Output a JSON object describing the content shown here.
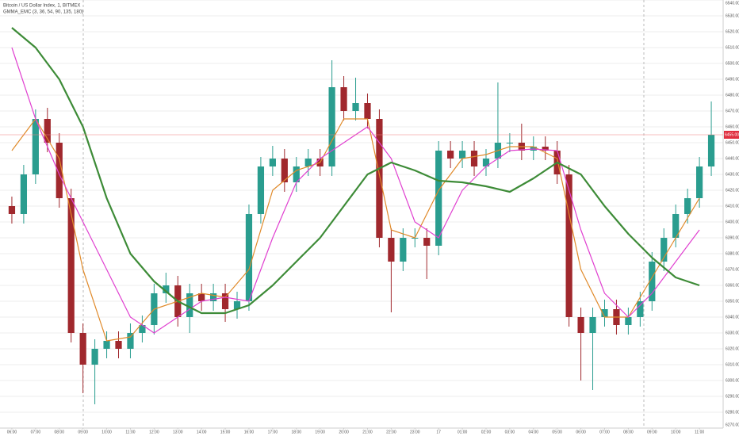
{
  "chart_data": {
    "type": "candlestick",
    "title": "Bitcoin / US Dollar Index, 1, BITMEX",
    "subtitle": "GMMA_EMC (3, 36, 54, 90, 135, 180)",
    "x": [
      0,
      1,
      2,
      3,
      4,
      5,
      6,
      7,
      8,
      9,
      10,
      11,
      12,
      13,
      14,
      15,
      16,
      17,
      18,
      19,
      20,
      21,
      22,
      23,
      24,
      25,
      26,
      27,
      28,
      29,
      30,
      31,
      32,
      33,
      34,
      35,
      36,
      37,
      38,
      39,
      40,
      41,
      42,
      43,
      44,
      45,
      46,
      47,
      48,
      49,
      50,
      51,
      52,
      53,
      54,
      55,
      56,
      57,
      58,
      59
    ],
    "open": [
      6410,
      6405,
      6430,
      6465,
      6450,
      6415,
      6330,
      6310,
      6320,
      6325,
      6320,
      6330,
      6335,
      6355,
      6360,
      6340,
      6355,
      6350,
      6355,
      6345,
      6350,
      6405,
      6435,
      6440,
      6425,
      6435,
      6440,
      6435,
      6485,
      6470,
      6475,
      6465,
      6390,
      6375,
      6390,
      6390,
      6385,
      6445,
      6440,
      6445,
      6435,
      6440,
      6450,
      6450,
      6445,
      6447.5,
      6445,
      6430,
      6340,
      6330,
      6340,
      6345,
      6335,
      6340,
      6350,
      6375,
      6390,
      6405,
      6415,
      6435
    ],
    "high": [
      6416,
      6436,
      6471,
      6472,
      6456,
      6421,
      6336,
      6326,
      6331,
      6331,
      6336,
      6341,
      6361,
      6368,
      6366,
      6361,
      6361,
      6361,
      6361,
      6356,
      6411,
      6441,
      6448,
      6446,
      6441,
      6446,
      6446,
      6502,
      6492,
      6491,
      6481,
      6471,
      6396,
      6396,
      6396,
      6396,
      6451,
      6451,
      6451,
      6451,
      6446,
      6488,
      6456,
      6462,
      6454,
      6454,
      6451,
      6436,
      6346,
      6346,
      6351,
      6351,
      6346,
      6356,
      6381,
      6396,
      6411,
      6421,
      6441,
      6476
    ],
    "low": [
      6399,
      6399,
      6424,
      6444,
      6409,
      6324,
      6292,
      6285,
      6314,
      6314,
      6314,
      6324,
      6329,
      6349,
      6334,
      6330,
      6344,
      6344,
      6337,
      6339,
      6344,
      6399,
      6429,
      6419,
      6419,
      6429,
      6429,
      6429,
      6464,
      6464,
      6459,
      6384,
      6343,
      6369,
      6384,
      6364,
      6379,
      6434,
      6434,
      6429,
      6429,
      6434,
      6444,
      6439,
      6439,
      6439,
      6424,
      6334,
      6300,
      6294,
      6334,
      6329,
      6329,
      6334,
      6344,
      6369,
      6384,
      6399,
      6409,
      6429
    ],
    "close": [
      6405,
      6430,
      6465,
      6450,
      6415,
      6330,
      6310,
      6320,
      6325,
      6320,
      6330,
      6335,
      6355,
      6360,
      6340,
      6355,
      6350,
      6355,
      6345,
      6350,
      6405,
      6435,
      6440,
      6425,
      6435,
      6440,
      6435,
      6485,
      6470,
      6475,
      6465,
      6390,
      6375,
      6390,
      6390,
      6385,
      6445,
      6440,
      6445,
      6435,
      6440,
      6450,
      6450,
      6445,
      6447.5,
      6445,
      6430,
      6340,
      6330,
      6340,
      6345,
      6335,
      6340,
      6350,
      6375,
      6390,
      6405,
      6415,
      6435,
      6455
    ],
    "up_color": "#2a9d8f",
    "down_color": "#a0282d",
    "series": [
      {
        "color": "#e08a2a",
        "x": [
          0,
          2,
          4,
          6,
          8,
          10,
          12,
          14,
          16,
          18,
          20,
          22,
          24,
          26,
          28,
          30,
          32,
          34,
          36,
          38,
          40,
          42,
          44,
          46,
          48,
          50,
          52,
          54,
          56,
          58
        ],
        "values": [
          6445,
          6465,
          6440,
          6370,
          6325,
          6327.5,
          6345,
          6350,
          6355,
          6352.5,
          6370,
          6420,
          6432.5,
          6437.5,
          6465,
          6465,
          6395,
          6390,
          6420,
          6440,
          6442.5,
          6447.5,
          6447.5,
          6440,
          6370,
          6340,
          6340,
          6365,
          6390,
          6415
        ]
      },
      {
        "color": "#e040d0",
        "x": [
          0,
          2,
          4,
          6,
          8,
          10,
          12,
          14,
          16,
          18,
          20,
          22,
          24,
          26,
          28,
          30,
          32,
          34,
          36,
          38,
          40,
          42,
          44,
          46,
          48,
          50,
          52,
          54,
          56,
          58
        ],
        "values": [
          6510,
          6465,
          6430,
          6400,
          6370,
          6340,
          6330,
          6340,
          6350,
          6352.5,
          6350,
          6390,
          6425,
          6440,
          6450,
          6460,
          6440,
          6400,
          6390,
          6420,
          6435,
          6445,
          6446,
          6445,
          6395,
          6355,
          6340,
          6355,
          6375,
          6395
        ]
      },
      {
        "color": "#3d8b37",
        "x": [
          0,
          2,
          4,
          6,
          8,
          10,
          12,
          14,
          16,
          18,
          20,
          22,
          24,
          26,
          28,
          30,
          32,
          34,
          36,
          38,
          40,
          42,
          44,
          46,
          48,
          50,
          52,
          54,
          56,
          58
        ],
        "values": [
          6522.5,
          6510,
          6490,
          6460,
          6415,
          6380,
          6362.5,
          6350,
          6342.5,
          6342.5,
          6347.5,
          6360,
          6375,
          6390,
          6410,
          6430,
          6437.5,
          6432.5,
          6426,
          6425,
          6422.5,
          6419,
          6427.5,
          6437.5,
          6430,
          6410,
          6392.5,
          6377.5,
          6365,
          6360
        ]
      }
    ],
    "xlim": [
      -1,
      60
    ],
    "xticks": [
      {
        "value": 0,
        "label": "06:00"
      },
      {
        "value": 2,
        "label": "07:00"
      },
      {
        "value": 4,
        "label": "08:00"
      },
      {
        "value": 6,
        "label": "09:00"
      },
      {
        "value": 8,
        "label": "10:00"
      },
      {
        "value": 10,
        "label": "11:00"
      },
      {
        "value": 12,
        "label": "12:00"
      },
      {
        "value": 14,
        "label": "13:00"
      },
      {
        "value": 16,
        "label": "14:00"
      },
      {
        "value": 18,
        "label": "15:00"
      },
      {
        "value": 20,
        "label": "16:00"
      },
      {
        "value": 22,
        "label": "17:00"
      },
      {
        "value": 24,
        "label": "18:00"
      },
      {
        "value": 26,
        "label": "19:00"
      },
      {
        "value": 28,
        "label": "20:00"
      },
      {
        "value": 30,
        "label": "21:00"
      },
      {
        "value": 32,
        "label": "22:00"
      },
      {
        "value": 34,
        "label": "23:00"
      },
      {
        "value": 36,
        "label": "17"
      },
      {
        "value": 38,
        "label": "01:00"
      },
      {
        "value": 40,
        "label": "02:00"
      },
      {
        "value": 42,
        "label": "03:00"
      },
      {
        "value": 44,
        "label": "04:00"
      },
      {
        "value": 46,
        "label": "05:00"
      },
      {
        "value": 48,
        "label": "06:00"
      },
      {
        "value": 50,
        "label": "07:00"
      },
      {
        "value": 52,
        "label": "08:00"
      },
      {
        "value": 54,
        "label": "09:00"
      },
      {
        "value": 56,
        "label": "10:00"
      },
      {
        "value": 58,
        "label": "11:00"
      }
    ],
    "ylim": [
      6270,
      6540
    ],
    "yticks": [
      {
        "value": 6540,
        "label": "6540.00"
      },
      {
        "value": 6530,
        "label": "6530.00"
      },
      {
        "value": 6520,
        "label": "6520.00"
      },
      {
        "value": 6510,
        "label": "6510.00"
      },
      {
        "value": 6500,
        "label": "6500.00"
      },
      {
        "value": 6490,
        "label": "6490.00"
      },
      {
        "value": 6480,
        "label": "6480.00"
      },
      {
        "value": 6470,
        "label": "6470.00"
      },
      {
        "value": 6460,
        "label": "6460.00"
      },
      {
        "value": 6450,
        "label": "6450.00"
      },
      {
        "value": 6440,
        "label": "6440.00"
      },
      {
        "value": 6430,
        "label": "6430.00"
      },
      {
        "value": 6420,
        "label": "6420.00"
      },
      {
        "value": 6410,
        "label": "6410.00"
      },
      {
        "value": 6400,
        "label": "6400.00"
      },
      {
        "value": 6390,
        "label": "6390.00"
      },
      {
        "value": 6380,
        "label": "6380.00"
      },
      {
        "value": 6370,
        "label": "6370.00"
      },
      {
        "value": 6360,
        "label": "6360.00"
      },
      {
        "value": 6350,
        "label": "6350.00"
      },
      {
        "value": 6340,
        "label": "6340.00"
      },
      {
        "value": 6330,
        "label": "6330.00"
      },
      {
        "value": 6320,
        "label": "6320.00"
      },
      {
        "value": 6310,
        "label": "6310.00"
      },
      {
        "value": 6300,
        "label": "6300.00"
      },
      {
        "value": 6290,
        "label": "6290.00"
      },
      {
        "value": 6280,
        "label": "6280.00"
      },
      {
        "value": 6270,
        "label": "6270.00"
      }
    ],
    "last_price": {
      "value": 6455,
      "label": "6455.00"
    },
    "grid": true
  }
}
